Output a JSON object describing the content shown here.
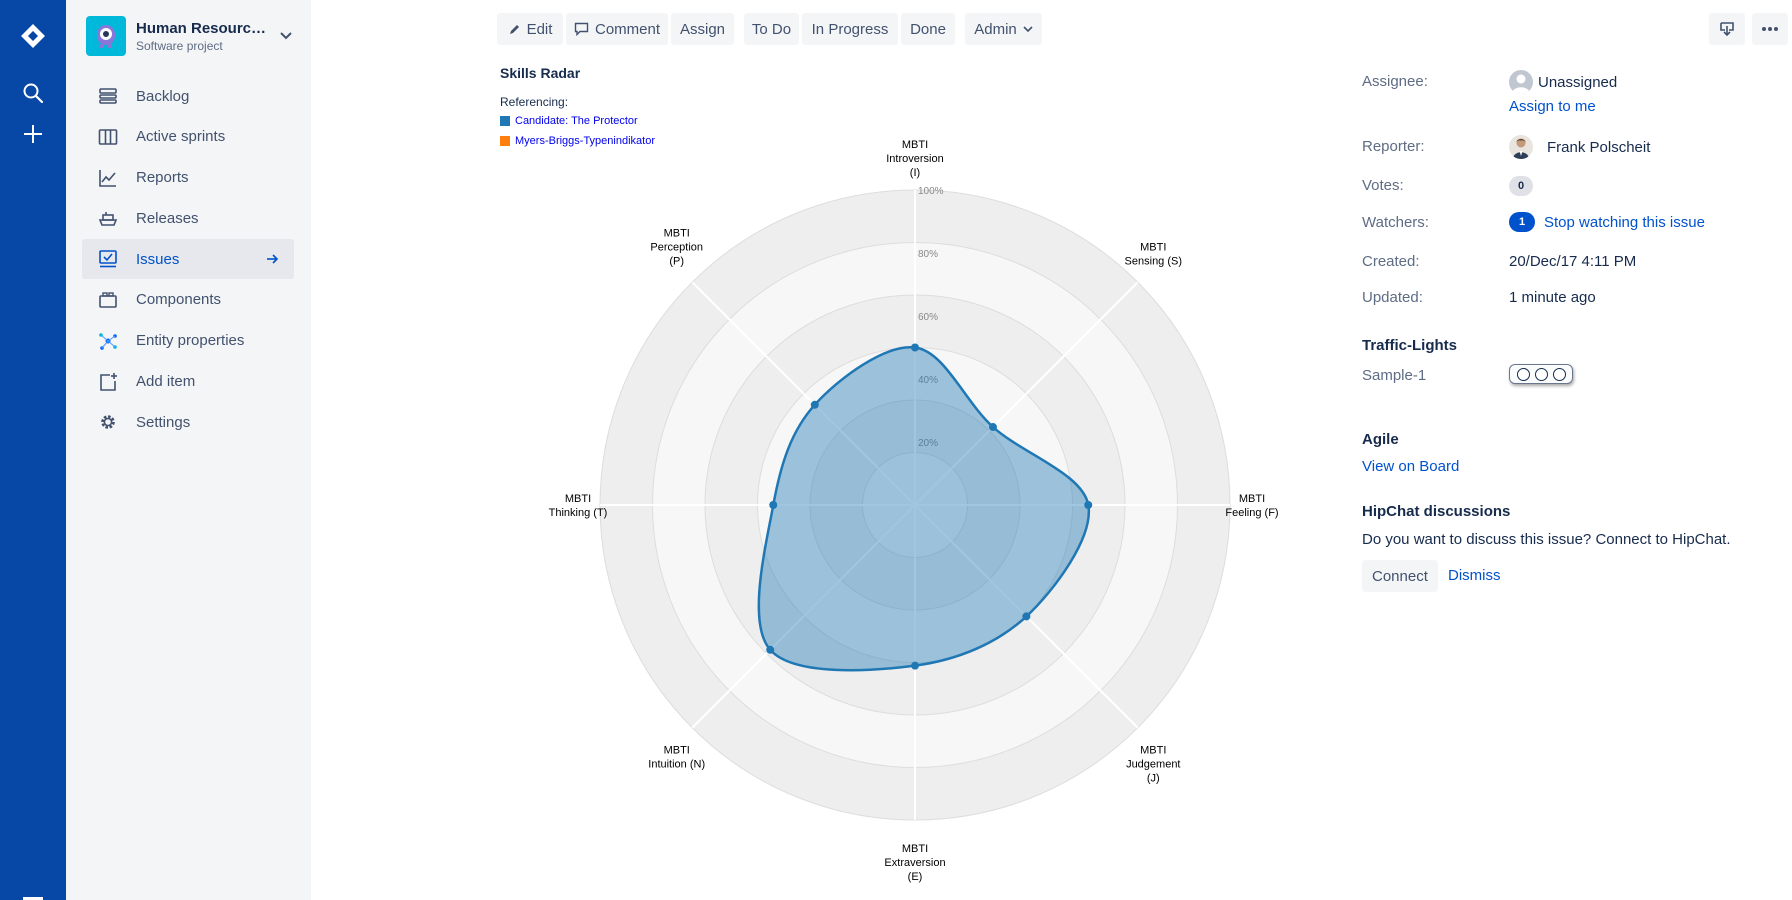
{
  "project": {
    "name": "Human Resourc…",
    "type": "Software project",
    "avatar_color": "#00b8d9"
  },
  "global_nav": {
    "color": "#0747a6",
    "items": [
      "jira-logo-icon",
      "search-icon",
      "create-plus-icon"
    ]
  },
  "sidebar": {
    "items": [
      {
        "label": "Backlog",
        "icon": "backlog-icon"
      },
      {
        "label": "Active sprints",
        "icon": "board-icon"
      },
      {
        "label": "Reports",
        "icon": "reports-icon"
      },
      {
        "label": "Releases",
        "icon": "ship-icon"
      },
      {
        "label": "Issues",
        "icon": "issues-icon",
        "active": true
      },
      {
        "label": "Components",
        "icon": "component-icon"
      },
      {
        "label": "Entity properties",
        "icon": "network-icon"
      },
      {
        "label": "Add item",
        "icon": "add-item-icon"
      },
      {
        "label": "Settings",
        "icon": "gear-icon"
      }
    ]
  },
  "toolbar": {
    "edit": "Edit",
    "comment": "Comment",
    "assign": "Assign",
    "todo": "To Do",
    "inprogress": "In Progress",
    "done": "Done",
    "admin": "Admin"
  },
  "chart_title": "Skills Radar",
  "referencing_label": "Referencing:",
  "chart_data": {
    "type": "radar",
    "axes": [
      [
        "MBTI",
        "Introversion",
        "(I)"
      ],
      [
        "MBTI",
        "Sensing (S)"
      ],
      [
        "MBTI",
        "Feeling (F)"
      ],
      [
        "MBTI",
        "Judgement",
        "(J)"
      ],
      [
        "MBTI",
        "Extraversion",
        "(E)"
      ],
      [
        "MBTI",
        "Intuition (N)"
      ],
      [
        "MBTI",
        "Thinking (T)"
      ],
      [
        "MBTI",
        "Perception",
        "(P)"
      ]
    ],
    "ticks": [
      "20%",
      "40%",
      "60%",
      "80%",
      "100%"
    ],
    "range": [
      0,
      100
    ],
    "series": [
      {
        "name": "Candidate: The Protector",
        "color": "#1f77b4",
        "values": [
          50,
          35,
          55,
          50,
          51,
          65,
          45,
          45
        ]
      },
      {
        "name": "Myers-Briggs-Typenindikator",
        "color": "#ff7f0e",
        "values": []
      }
    ]
  },
  "details": {
    "assignee_label": "Assignee:",
    "assignee_value": "Unassigned",
    "assign_to_me": "Assign to me",
    "reporter_label": "Reporter:",
    "reporter_value": "Frank Polscheit",
    "votes_label": "Votes:",
    "votes_count": "0",
    "watchers_label": "Watchers:",
    "watchers_count": "1",
    "watchers_link": "Stop watching this issue",
    "created_label": "Created:",
    "created_value": "20/Dec/17 4:11 PM",
    "updated_label": "Updated:",
    "updated_value": "1 minute ago",
    "traffic_title": "Traffic-Lights",
    "traffic_sample": "Sample-1",
    "agile_title": "Agile",
    "agile_link": "View on Board",
    "hipchat_title": "HipChat discussions",
    "hipchat_text": "Do you want to discuss this issue? Connect to HipChat.",
    "connect": "Connect",
    "dismiss": "Dismiss"
  }
}
